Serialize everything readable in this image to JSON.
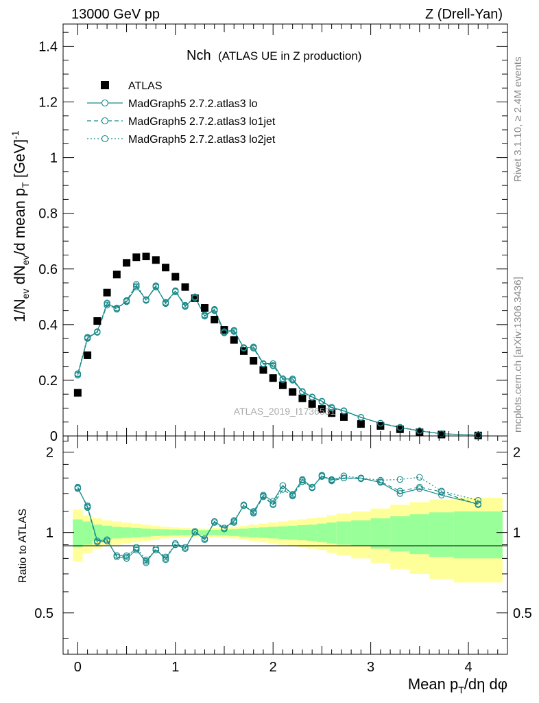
{
  "header": {
    "left": "13000 GeV pp",
    "right": "Z (Drell-Yan)"
  },
  "side_labels": {
    "rivet": "Rivet 3.1.10, ≥ 2.4M events",
    "mcplots": "mcplots.cern.ch [arXiv:1306.3436]"
  },
  "watermark": "ATLAS_2019_I1736531",
  "colors": {
    "data": "#000000",
    "mc": "#1a8a8a",
    "band_inner": "#99ff99",
    "band_outer": "#ffff99"
  },
  "chart_data": [
    {
      "type": "scatter",
      "title": "Nch",
      "subtitle": "(ATLAS UE in Z production)",
      "xlabel": "Mean p_T/dη dφ",
      "ylabel": "1/N_ev dN_ev/d mean p_T [GeV]^-1",
      "xlim": [
        -0.15,
        4.4
      ],
      "ylim": [
        0,
        1.48
      ],
      "yticks": [
        0,
        0.2,
        0.4,
        0.6,
        0.8,
        1,
        1.2,
        1.4
      ],
      "ytick_labels": [
        "0",
        "0.2",
        "0.4",
        "0.6",
        "0.8",
        "1",
        "1.2",
        "1.4"
      ],
      "legend_position": "top-left",
      "x": [
        0,
        0.1,
        0.2,
        0.3,
        0.4,
        0.5,
        0.6,
        0.7,
        0.8,
        0.9,
        1.0,
        1.1,
        1.2,
        1.3,
        1.4,
        1.5,
        1.6,
        1.7,
        1.8,
        1.9,
        2.0,
        2.1,
        2.2,
        2.3,
        2.4,
        2.5,
        2.6,
        2.725,
        2.9,
        3.1,
        3.3,
        3.5,
        3.725,
        4.1
      ],
      "series": [
        {
          "name": "ATLAS",
          "marker": "square",
          "values": [
            0.155,
            0.29,
            0.413,
            0.515,
            0.58,
            0.622,
            0.642,
            0.645,
            0.632,
            0.605,
            0.572,
            0.535,
            0.495,
            0.46,
            0.418,
            0.381,
            0.345,
            0.305,
            0.27,
            0.237,
            0.208,
            0.182,
            0.158,
            0.135,
            0.115,
            0.097,
            0.082,
            0.068,
            0.043,
            0.036,
            0.024,
            0.013,
            0.005,
            0.0017
          ]
        },
        {
          "name": "MadGraph5 2.7.2.atlas3 lo",
          "marker": "open-circle",
          "line": "solid",
          "values": [
            0.218,
            0.35,
            0.375,
            0.475,
            0.46,
            0.482,
            0.535,
            0.49,
            0.535,
            0.48,
            0.52,
            0.465,
            0.5,
            0.43,
            0.455,
            0.375,
            0.38,
            0.315,
            0.32,
            0.26,
            0.26,
            0.205,
            0.205,
            0.16,
            0.14,
            0.125,
            0.103,
            0.09,
            0.067,
            0.045,
            0.03,
            0.018,
            0.008,
            0.003
          ]
        },
        {
          "name": "MadGraph5 2.7.2.atlas3 lo1jet",
          "marker": "open-circle",
          "line": "dashed",
          "values": [
            0.222,
            0.352,
            0.372,
            0.47,
            0.458,
            0.487,
            0.54,
            0.487,
            0.54,
            0.475,
            0.522,
            0.47,
            0.495,
            0.435,
            0.45,
            0.37,
            0.375,
            0.318,
            0.315,
            0.258,
            0.254,
            0.202,
            0.2,
            0.158,
            0.14,
            0.123,
            0.1,
            0.089,
            0.066,
            0.046,
            0.031,
            0.018,
            0.008,
            0.003
          ]
        },
        {
          "name": "MadGraph5 2.7.2.atlas3 lo2jet",
          "marker": "open-circle",
          "line": "dotted",
          "values": [
            0.224,
            0.355,
            0.374,
            0.478,
            0.455,
            0.485,
            0.545,
            0.487,
            0.538,
            0.478,
            0.518,
            0.468,
            0.498,
            0.432,
            0.452,
            0.372,
            0.378,
            0.316,
            0.318,
            0.26,
            0.252,
            0.206,
            0.202,
            0.158,
            0.138,
            0.124,
            0.102,
            0.091,
            0.067,
            0.046,
            0.031,
            0.019,
            0.008,
            0.003
          ]
        }
      ]
    },
    {
      "type": "line",
      "ylabel": "Ratio to ATLAS",
      "xlabel": "Mean p_T/dη dφ",
      "xlim": [
        -0.15,
        4.4
      ],
      "ylim": [
        0.35,
        2.3
      ],
      "xticks": [
        0,
        1,
        2,
        3,
        4
      ],
      "xtick_labels": [
        "0",
        "1",
        "2",
        "3",
        "4"
      ],
      "yticks": [
        0.5,
        1,
        2
      ],
      "ytick_labels": [
        "0.5",
        "1",
        "2"
      ],
      "x": [
        0,
        0.1,
        0.2,
        0.3,
        0.4,
        0.5,
        0.6,
        0.7,
        0.8,
        0.9,
        1.0,
        1.1,
        1.2,
        1.3,
        1.4,
        1.5,
        1.6,
        1.7,
        1.8,
        1.9,
        2.0,
        2.1,
        2.2,
        2.3,
        2.4,
        2.5,
        2.6,
        2.725,
        2.9,
        3.1,
        3.3,
        3.5,
        3.725,
        4.1
      ],
      "bin_edges": [
        -0.05,
        0.05,
        0.15,
        0.25,
        0.35,
        0.45,
        0.55,
        0.65,
        0.75,
        0.85,
        0.95,
        1.05,
        1.15,
        1.25,
        1.35,
        1.45,
        1.55,
        1.65,
        1.75,
        1.85,
        1.95,
        2.05,
        2.15,
        2.25,
        2.35,
        2.45,
        2.55,
        2.65,
        2.8,
        3.0,
        3.2,
        3.4,
        3.6,
        3.85,
        4.35
      ],
      "band_inner": [
        0.12,
        0.1,
        0.07,
        0.06,
        0.05,
        0.045,
        0.04,
        0.035,
        0.03,
        0.027,
        0.025,
        0.022,
        0.02,
        0.02,
        0.022,
        0.025,
        0.03,
        0.035,
        0.04,
        0.045,
        0.05,
        0.055,
        0.06,
        0.065,
        0.07,
        0.08,
        0.09,
        0.1,
        0.11,
        0.13,
        0.15,
        0.17,
        0.19,
        0.2
      ],
      "band_outer": [
        0.22,
        0.16,
        0.13,
        0.11,
        0.1,
        0.09,
        0.08,
        0.07,
        0.06,
        0.05,
        0.045,
        0.04,
        0.035,
        0.035,
        0.04,
        0.045,
        0.05,
        0.06,
        0.07,
        0.08,
        0.09,
        0.1,
        0.11,
        0.12,
        0.13,
        0.14,
        0.16,
        0.18,
        0.2,
        0.23,
        0.27,
        0.3,
        0.33,
        0.35
      ],
      "series": [
        {
          "name": "MadGraph5 2.7.2.atlas3 lo",
          "line": "solid",
          "values": [
            1.47,
            1.25,
            0.93,
            0.94,
            0.81,
            0.8,
            0.86,
            0.78,
            0.86,
            0.8,
            0.9,
            0.87,
            1.01,
            0.94,
            1.1,
            1.04,
            1.1,
            1.26,
            1.19,
            1.38,
            1.31,
            1.5,
            1.39,
            1.58,
            1.48,
            1.62,
            1.58,
            1.6,
            1.6,
            1.54,
            1.4,
            1.46,
            1.38,
            1.28
          ]
        },
        {
          "name": "MadGraph5 2.7.2.atlas3 lo1jet",
          "line": "dashed",
          "values": [
            1.48,
            1.24,
            0.92,
            0.93,
            0.82,
            0.82,
            0.87,
            0.77,
            0.87,
            0.79,
            0.91,
            0.88,
            1.0,
            0.95,
            1.09,
            1.03,
            1.09,
            1.27,
            1.18,
            1.36,
            1.27,
            1.45,
            1.37,
            1.55,
            1.47,
            1.63,
            1.56,
            1.6,
            1.59,
            1.55,
            1.43,
            1.48,
            1.42,
            1.27
          ]
        },
        {
          "name": "MadGraph5 2.7.2.atlas3 lo2jet",
          "line": "dotted",
          "values": [
            1.46,
            1.26,
            0.93,
            0.93,
            0.82,
            0.81,
            0.88,
            0.79,
            0.86,
            0.81,
            0.9,
            0.87,
            1.01,
            0.94,
            1.1,
            1.04,
            1.11,
            1.26,
            1.2,
            1.37,
            1.28,
            1.5,
            1.38,
            1.57,
            1.47,
            1.64,
            1.57,
            1.63,
            1.6,
            1.57,
            1.58,
            1.61,
            1.43,
            1.32
          ]
        }
      ]
    }
  ]
}
